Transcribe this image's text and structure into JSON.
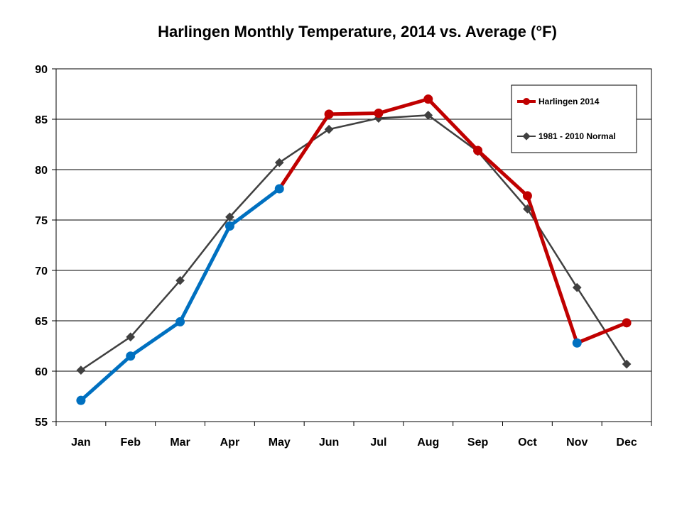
{
  "chart_data": {
    "type": "line",
    "title": "Harlingen Monthly Temperature, 2014 vs. Average (°F)",
    "xlabel": "",
    "ylabel": "",
    "ylim": [
      55,
      90
    ],
    "yticks": [
      55,
      60,
      65,
      70,
      75,
      80,
      85,
      90
    ],
    "grid": true,
    "legend_position": "top-right",
    "categories": [
      "Jan",
      "Feb",
      "Mar",
      "Apr",
      "May",
      "Jun",
      "Jul",
      "Aug",
      "Sep",
      "Oct",
      "Nov",
      "Dec"
    ],
    "series": [
      {
        "name": "Harlingen 2014",
        "values": [
          57.1,
          61.5,
          64.9,
          74.4,
          78.1,
          85.5,
          85.6,
          87.0,
          81.9,
          77.4,
          62.8,
          64.8
        ],
        "color": "#c00000",
        "below_normal_color": "#0070c0"
      },
      {
        "name": "1981 - 2010 Normal",
        "values": [
          60.1,
          63.4,
          69.0,
          75.3,
          80.7,
          84.0,
          85.1,
          85.4,
          81.8,
          76.1,
          68.3,
          60.7
        ],
        "color": "#404040"
      }
    ]
  }
}
